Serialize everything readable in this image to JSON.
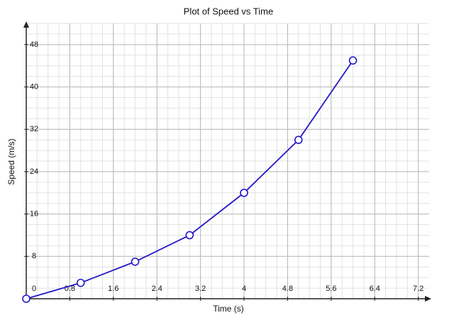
{
  "chart_data": {
    "type": "line",
    "title": "Plot of Speed vs Time",
    "x_label": "Time (s)",
    "y_label": "Speed (m/s)",
    "x": [
      0,
      1,
      2,
      3,
      4,
      5,
      6
    ],
    "series": [
      {
        "name": "Speed",
        "color": "#2418c8",
        "values": [
          0,
          3,
          7,
          12,
          20,
          30,
          45
        ]
      }
    ],
    "xlim": [
      0,
      7.4
    ],
    "ylim": [
      0,
      52
    ],
    "xticks": [
      0,
      0.8,
      1.6,
      2.4,
      3.2,
      4,
      4.8,
      5.6,
      6.4,
      7.2
    ],
    "yticks": [
      8,
      16,
      24,
      32,
      40,
      48
    ],
    "grid": true
  }
}
